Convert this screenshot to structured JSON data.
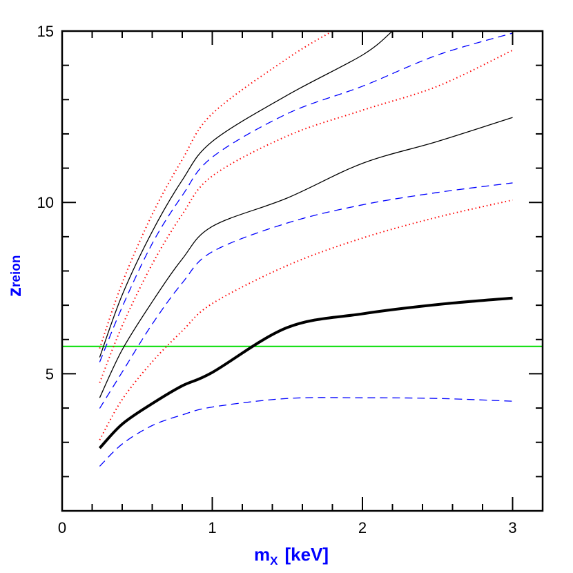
{
  "chart_data": {
    "type": "line",
    "title": "",
    "xlabel": "m",
    "xlabel_sub": "X",
    "xlabel_unit": "[keV]",
    "ylabel": "z",
    "ylabel_sub": "reion",
    "xlim": [
      0,
      3.2
    ],
    "ylim": [
      1,
      15
    ],
    "x_ticks": [
      0,
      1,
      2,
      3
    ],
    "y_ticks": [
      5,
      10,
      15
    ],
    "x_minor_step": 0.2,
    "y_minor_step": 1,
    "grid": false,
    "label_color": "#0000ff",
    "hline": {
      "y": 5.8,
      "color": "#00dd00"
    },
    "series": [
      {
        "style": "solid-thick",
        "color": "#000000",
        "x": [
          0.25,
          0.4,
          0.6,
          0.8,
          1,
          1.5,
          2,
          2.5,
          3
        ],
        "y": [
          2.83,
          3.53,
          4.13,
          4.65,
          5.04,
          6.35,
          6.75,
          7.02,
          7.21
        ]
      },
      {
        "style": "dashed",
        "color": "#0000ff",
        "x": [
          0.25,
          0.4,
          0.6,
          0.8,
          1,
          1.5,
          2,
          2.5,
          3
        ],
        "y": [
          2.3,
          2.95,
          3.49,
          3.8,
          4.03,
          4.28,
          4.3,
          4.28,
          4.2
        ]
      },
      {
        "style": "dotted",
        "color": "#ff0000",
        "x": [
          0.25,
          0.4,
          0.6,
          0.8,
          1,
          1.5,
          2,
          2.5,
          3
        ],
        "y": [
          3.07,
          4.25,
          5.35,
          6.25,
          7.05,
          8.16,
          8.96,
          9.57,
          10.07
        ]
      },
      {
        "style": "dashed",
        "color": "#0000ff",
        "x": [
          0.25,
          0.4,
          0.6,
          0.8,
          1,
          1.5,
          2,
          2.5,
          3
        ],
        "y": [
          3.99,
          5.05,
          6.45,
          7.65,
          8.56,
          9.4,
          9.93,
          10.29,
          10.57
        ]
      },
      {
        "style": "solid",
        "color": "#000000",
        "x": [
          0.25,
          0.4,
          0.6,
          0.8,
          1,
          1.5,
          2,
          2.5,
          3
        ],
        "y": [
          4.3,
          5.7,
          7.1,
          8.35,
          9.3,
          10.13,
          11.14,
          11.78,
          12.48
        ]
      },
      {
        "style": "dotted",
        "color": "#ff0000",
        "x": [
          0.25,
          0.4,
          0.6,
          0.8,
          1,
          1.5,
          2,
          2.5,
          3
        ],
        "y": [
          4.74,
          6.4,
          8.2,
          9.65,
          10.77,
          11.94,
          12.69,
          13.39,
          14.44
        ]
      },
      {
        "style": "dashed",
        "color": "#0000ff",
        "x": [
          0.25,
          0.4,
          0.6,
          0.8,
          1,
          1.5,
          2,
          2.5,
          3
        ],
        "y": [
          5.34,
          6.95,
          8.8,
          10.2,
          11.32,
          12.59,
          13.39,
          14.3,
          14.94
        ]
      },
      {
        "style": "solid",
        "color": "#000000",
        "x": [
          0.25,
          0.4,
          0.6,
          0.8,
          1,
          1.5,
          2,
          2.2
        ],
        "y": [
          5.48,
          7.3,
          9.15,
          10.65,
          11.78,
          13.13,
          14.3,
          15.0
        ]
      },
      {
        "style": "dotted",
        "color": "#ff0000",
        "x": [
          0.25,
          0.4,
          0.6,
          0.8,
          1,
          1.5,
          1.8
        ],
        "y": [
          5.74,
          7.65,
          9.65,
          11.25,
          12.59,
          14.2,
          15.0
        ]
      }
    ]
  }
}
